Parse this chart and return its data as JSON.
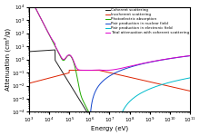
{
  "xlabel": "Energy (eV)",
  "ylabel": "Attenuation (cm²/g)",
  "legend_entries": [
    "Coherent scattering",
    "Incoherent scattering",
    "Photoelectric absorption",
    "Pair production in nuclear field",
    "Pair production in electronic field",
    "Total attenuation with coherent scattering"
  ],
  "line_colors": [
    "#222222",
    "#dd2200",
    "#22aa00",
    "#1144cc",
    "#00bbcc",
    "#dd00cc"
  ],
  "background_color": "#ffffff",
  "xlim": [
    1000.0,
    100000000000.0
  ],
  "ylim": [
    0.0001,
    10000.0
  ]
}
